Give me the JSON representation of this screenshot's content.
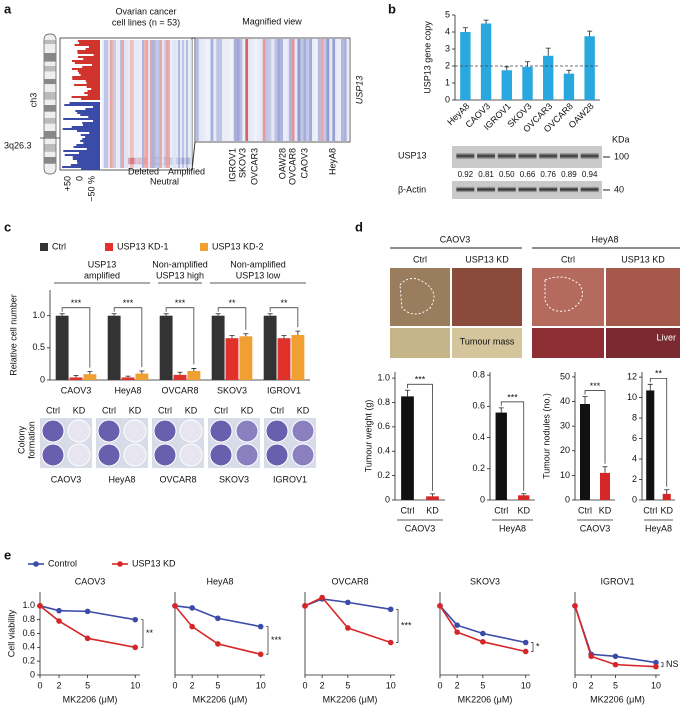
{
  "panel_labels": [
    "a",
    "b",
    "c",
    "d",
    "e"
  ],
  "figure_a": {
    "header": [
      "Ovarian cancer",
      "cell lines (n = 53)"
    ],
    "magnified": "Magnified view",
    "gene": "USP13",
    "chromosome": "ch3",
    "locus": "3q26.3",
    "scale": [
      "+50",
      "0",
      "−50 %"
    ],
    "colorbar": [
      "Deleted",
      "Neutral",
      "Amplified"
    ],
    "cell_lines": [
      "IGROV1",
      "SKOV3",
      "OVCAR3",
      "OAW28",
      "OVCAR8",
      "CAOV3",
      "HeyA8"
    ]
  },
  "blot_b": {
    "unit": "KDa",
    "rows": [
      "USP13",
      "β-Actin"
    ],
    "sizes": [
      "100",
      "40"
    ],
    "quantification": [
      "0.92",
      "0.81",
      "0.50",
      "0.66",
      "0.76",
      "0.89",
      "0.94"
    ]
  },
  "colony_c": {
    "columns": [
      "Ctrl",
      "KD"
    ],
    "label": [
      "Colony",
      "formation"
    ],
    "cell_lines": [
      "CAOV3",
      "HeyA8",
      "OVCAR8",
      "SKOV3",
      "IGROV1"
    ]
  },
  "photos_d": {
    "cell_lines": [
      "CAOV3",
      "HeyA8"
    ],
    "conditions": [
      "Ctrl",
      "USP13 KD"
    ],
    "insets": [
      "Tumour mass",
      "Liver"
    ]
  },
  "legend_e": [
    {
      "name": "Control",
      "color": "#3b4ba8"
    },
    {
      "name": "USP13 KD",
      "color": "#d62728"
    }
  ],
  "chart_data": [
    {
      "type": "bar",
      "ylabel": "USP13 gene copy",
      "categories": [
        "HeyA8",
        "CAOV3",
        "IGROV1",
        "SKOV3",
        "OVCAR3",
        "OVCAR8",
        "OAW28"
      ],
      "values": [
        4,
        4.5,
        1.75,
        1.95,
        2.6,
        1.55,
        3.75
      ],
      "errors": [
        0.25,
        0.2,
        0.2,
        0.3,
        0.45,
        0.2,
        0.3
      ],
      "color": "#29a8e0",
      "ylim": [
        0,
        5
      ],
      "yticks": [
        0,
        1,
        2,
        3,
        4,
        5
      ],
      "reference_line": 2
    },
    {
      "type": "bar",
      "ylabel": "Relative cell number",
      "categories": [
        "CAOV3",
        "HeyA8",
        "OVCAR8",
        "SKOV3",
        "IGROV1"
      ],
      "series": [
        {
          "name": "Ctrl",
          "color": "#333333",
          "values": [
            1,
            1,
            1,
            1,
            1
          ],
          "errors": [
            0.03,
            0.03,
            0.03,
            0.03,
            0.03
          ]
        },
        {
          "name": "USP13 KD-1",
          "color": "#e0312a",
          "values": [
            0.04,
            0.04,
            0.08,
            0.65,
            0.65
          ],
          "errors": [
            0.03,
            0.02,
            0.04,
            0.04,
            0.04
          ]
        },
        {
          "name": "USP13 KD-2",
          "color": "#f0a030",
          "values": [
            0.09,
            0.1,
            0.14,
            0.68,
            0.7
          ],
          "errors": [
            0.04,
            0.04,
            0.04,
            0.04,
            0.06
          ]
        }
      ],
      "ylim": [
        0,
        1.4
      ],
      "yticks": [
        0,
        0.5,
        {
          "value": 1,
          "label": "1.0"
        }
      ],
      "group_labels": [
        [
          "USP13",
          "amplified"
        ],
        [
          "Non-amplified",
          "USP13 high"
        ],
        [
          "Non-amplified",
          "USP13 low"
        ]
      ],
      "significance": [
        "***",
        "***",
        "***",
        "**",
        "**"
      ]
    },
    {
      "type": "bar",
      "ylabel": "Tumour weight (g)",
      "categories": [
        "Ctrl",
        "KD"
      ],
      "values": [
        0.85,
        0.03
      ],
      "errors": [
        0.05,
        0.02
      ],
      "colors": [
        "#111111",
        "#d62728"
      ],
      "ylim": [
        0,
        1.05
      ],
      "yticks": [
        0,
        0.2,
        0.4,
        0.6,
        0.8,
        {
          "value": 1,
          "label": "1.0"
        }
      ],
      "group": "CAOV3",
      "significance": "***"
    },
    {
      "type": "bar",
      "categories": [
        "Ctrl",
        "KD"
      ],
      "values": [
        0.56,
        0.03
      ],
      "errors": [
        0.03,
        0.01
      ],
      "colors": [
        "#111111",
        "#d62728"
      ],
      "ylim": [
        0,
        0.82
      ],
      "yticks": [
        0,
        0.2,
        0.4,
        0.6,
        0.8
      ],
      "group": "HeyA8",
      "significance": "***"
    },
    {
      "type": "bar",
      "ylabel": "Tumour nodules (no.)",
      "categories": [
        "Ctrl",
        "KD"
      ],
      "values": [
        39,
        11
      ],
      "errors": [
        3,
        2.5
      ],
      "colors": [
        "#111111",
        "#d62728"
      ],
      "ylim": [
        0,
        52
      ],
      "yticks": [
        0,
        10,
        20,
        30,
        40,
        50
      ],
      "group": "CAOV3",
      "significance": "***"
    },
    {
      "type": "bar",
      "categories": [
        "Ctrl",
        "KD"
      ],
      "values": [
        10.7,
        0.6
      ],
      "errors": [
        0.6,
        0.4
      ],
      "colors": [
        "#111111",
        "#d62728"
      ],
      "ylim": [
        0,
        12.5
      ],
      "yticks": [
        0,
        2,
        4,
        6,
        8,
        10,
        12
      ],
      "group": "HeyA8",
      "significance": "**"
    },
    {
      "type": "line",
      "title": "CAOV3",
      "xlabel": "MK2206 (μM)",
      "ylabel": "Cell viability",
      "x": [
        0,
        2,
        5,
        10
      ],
      "xlim": [
        0,
        10.5
      ],
      "xticks": [
        0,
        2,
        5,
        10
      ],
      "ylim": [
        0,
        1.2
      ],
      "yticks": [
        0,
        0.2,
        0.4,
        0.6,
        0.8,
        {
          "value": 1,
          "label": "1.0"
        }
      ],
      "series": [
        {
          "color": "#3b4ba8",
          "values": [
            1,
            0.93,
            0.92,
            0.8
          ]
        },
        {
          "color": "#d62728",
          "values": [
            1,
            0.78,
            0.53,
            0.4
          ]
        }
      ],
      "significance": "**"
    },
    {
      "type": "line",
      "title": "HeyA8",
      "xlabel": "MK2206 (μM)",
      "x": [
        0,
        2,
        5,
        10
      ],
      "xlim": [
        0,
        10.5
      ],
      "xticks": [
        0,
        2,
        5,
        10
      ],
      "ylim": [
        0,
        1.2
      ],
      "series": [
        {
          "color": "#3b4ba8",
          "values": [
            1,
            0.97,
            0.82,
            0.7
          ]
        },
        {
          "color": "#d62728",
          "values": [
            1,
            0.7,
            0.45,
            0.3
          ]
        }
      ],
      "significance": "***"
    },
    {
      "type": "line",
      "title": "OVCAR8",
      "xlabel": "MK2206 (μM)",
      "x": [
        0,
        2,
        5,
        10
      ],
      "xlim": [
        0,
        10.5
      ],
      "xticks": [
        0,
        2,
        5,
        10
      ],
      "ylim": [
        0,
        1.2
      ],
      "series": [
        {
          "color": "#3b4ba8",
          "values": [
            1,
            1.1,
            1.05,
            0.95
          ]
        },
        {
          "color": "#d62728",
          "values": [
            1,
            1.12,
            0.68,
            0.47
          ]
        }
      ],
      "significance": "***"
    },
    {
      "type": "line",
      "title": "SKOV3",
      "xlabel": "MK2206 (μM)",
      "x": [
        0,
        2,
        5,
        10
      ],
      "xlim": [
        0,
        10.5
      ],
      "xticks": [
        0,
        2,
        5,
        10
      ],
      "ylim": [
        0,
        1.2
      ],
      "series": [
        {
          "color": "#3b4ba8",
          "values": [
            1,
            0.72,
            0.6,
            0.47
          ]
        },
        {
          "color": "#d62728",
          "values": [
            1,
            0.62,
            0.48,
            0.34
          ]
        }
      ],
      "significance": "*"
    },
    {
      "type": "line",
      "title": "IGROV1",
      "xlabel": "MK2206 (μM)",
      "x": [
        0,
        2,
        5,
        10
      ],
      "xlim": [
        0,
        10.5
      ],
      "xticks": [
        0,
        2,
        5,
        10
      ],
      "ylim": [
        0,
        1.2
      ],
      "series": [
        {
          "color": "#3b4ba8",
          "values": [
            1,
            0.3,
            0.27,
            0.18
          ]
        },
        {
          "color": "#d62728",
          "values": [
            1,
            0.27,
            0.15,
            0.12
          ]
        }
      ],
      "significance": "NS"
    }
  ]
}
